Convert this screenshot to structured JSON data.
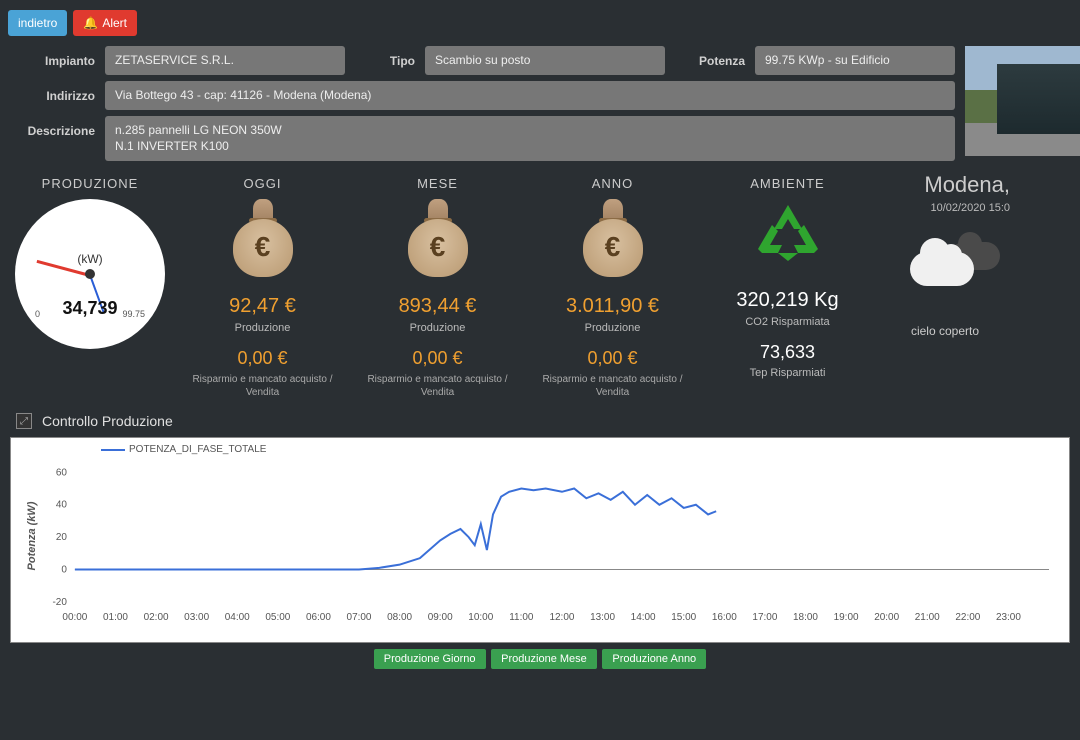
{
  "topbar": {
    "indietro": "indietro",
    "alert": "Alert",
    "bell_icon": "bell-icon"
  },
  "info": {
    "impianto_label": "Impianto",
    "impianto": "ZETASERVICE S.R.L.",
    "tipo_label": "Tipo",
    "tipo": "Scambio su posto",
    "potenza_label": "Potenza",
    "potenza": "99.75 KWp - su Edificio",
    "indirizzo_label": "Indirizzo",
    "indirizzo": "Via Bottego 43 - cap: 41126 - Modena (Modena)",
    "descrizione_label": "Descrizione",
    "descrizione": "n.285 pannelli LG NEON 350W\nN.1 INVERTER K100"
  },
  "metrics": {
    "produzione_title": "PRODUZIONE",
    "gauge": {
      "unit": "(kW)",
      "value": "34,739",
      "min": "0",
      "max": "99.75"
    },
    "oggi": {
      "title": "OGGI",
      "main": "92,47 €",
      "main_sub": "Produzione",
      "sec": "0,00 €",
      "sec_sub": "Risparmio e mancato acquisto / Vendita"
    },
    "mese": {
      "title": "MESE",
      "main": "893,44 €",
      "main_sub": "Produzione",
      "sec": "0,00 €",
      "sec_sub": "Risparmio e mancato acquisto / Vendita"
    },
    "anno": {
      "title": "ANNO",
      "main": "3.011,90 €",
      "main_sub": "Produzione",
      "sec": "0,00 €",
      "sec_sub": "Risparmio e mancato acquisto / Vendita"
    },
    "ambiente": {
      "title": "AMBIENTE",
      "main": "320,219 Kg",
      "main_sub": "CO2 Risparmiata",
      "sec": "73,633",
      "sec_sub": "Tep Risparmiati"
    },
    "weather": {
      "city": "Modena,",
      "datetime": "10/02/2020 15:0",
      "desc": "cielo coperto"
    }
  },
  "chart": {
    "panel_title": "Controllo Produzione",
    "legend": "POTENZA_DI_FASE_TOTALE",
    "y_axis_title": "Potenza (kW)",
    "y_ticks": [
      "-20",
      "0",
      "20",
      "40",
      "60"
    ],
    "ylim": [
      -20,
      70
    ],
    "x_hours": [
      "00:00",
      "01:00",
      "02:00",
      "03:00",
      "04:00",
      "05:00",
      "06:00",
      "07:00",
      "08:00",
      "09:00",
      "10:00",
      "11:00",
      "12:00",
      "13:00",
      "14:00",
      "15:00",
      "16:00",
      "17:00",
      "18:00",
      "19:00",
      "20:00",
      "21:00",
      "22:00",
      "23:00"
    ],
    "line_color": "#3a6fd8",
    "grid_color": "#cccccc",
    "background": "#ffffff",
    "series": [
      [
        0,
        0
      ],
      [
        1,
        0
      ],
      [
        2,
        0
      ],
      [
        3,
        0
      ],
      [
        4,
        0
      ],
      [
        5,
        0
      ],
      [
        6,
        0
      ],
      [
        7,
        0
      ],
      [
        7.5,
        1
      ],
      [
        8,
        3
      ],
      [
        8.5,
        7
      ],
      [
        9,
        18
      ],
      [
        9.25,
        22
      ],
      [
        9.5,
        25
      ],
      [
        9.7,
        20
      ],
      [
        9.85,
        15
      ],
      [
        10,
        28
      ],
      [
        10.15,
        12
      ],
      [
        10.3,
        34
      ],
      [
        10.5,
        45
      ],
      [
        10.7,
        48
      ],
      [
        11,
        50
      ],
      [
        11.3,
        49
      ],
      [
        11.6,
        50
      ],
      [
        12,
        48
      ],
      [
        12.3,
        50
      ],
      [
        12.6,
        44
      ],
      [
        12.9,
        47
      ],
      [
        13.2,
        43
      ],
      [
        13.5,
        48
      ],
      [
        13.8,
        40
      ],
      [
        14.1,
        46
      ],
      [
        14.4,
        40
      ],
      [
        14.7,
        44
      ],
      [
        15,
        38
      ],
      [
        15.3,
        40
      ],
      [
        15.6,
        34
      ],
      [
        15.8,
        36
      ]
    ],
    "buttons": {
      "giorno": "Produzione Giorno",
      "mese": "Produzione Mese",
      "anno": "Produzione Anno"
    }
  },
  "colors": {
    "bg": "#2a2f33",
    "accent_orange": "#f0a030",
    "accent_green": "#3aa050",
    "btn_blue": "#4aa3d6",
    "btn_red": "#e03a2f"
  }
}
